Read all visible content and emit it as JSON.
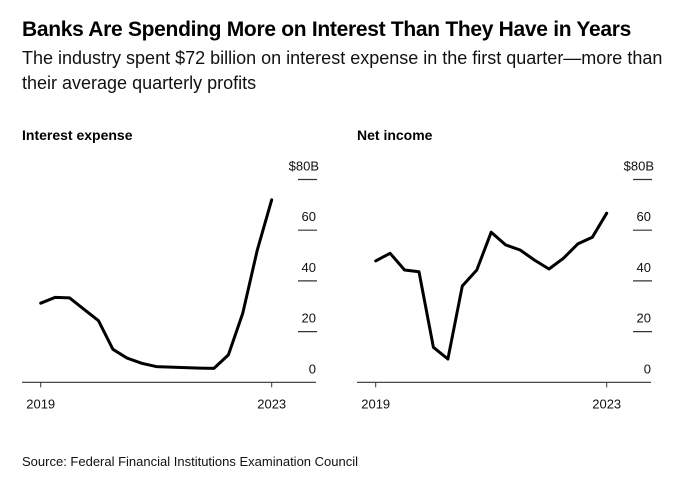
{
  "header": {
    "title": "Banks Are Spending More on Interest Than They Have in Years",
    "subtitle": "The industry spent $72 billion on interest expense in the first quarter—more than their average quarterly profits"
  },
  "footer": {
    "source": "Source: Federal Financial Institutions Examination Council"
  },
  "chart_data": [
    {
      "type": "line",
      "title": "Interest expense",
      "xlabel": "",
      "ylabel": "",
      "x_tick_labels": [
        "2019",
        "2023"
      ],
      "y_tick_labels": [
        "0",
        "20",
        "40",
        "60",
        "$80B"
      ],
      "y_ticks": [
        0,
        20,
        40,
        60,
        80
      ],
      "ylim": [
        0,
        80
      ],
      "grid": false,
      "x": [
        "2019 Q1",
        "2019 Q2",
        "2019 Q3",
        "2019 Q4",
        "2020 Q1",
        "2020 Q2",
        "2020 Q3",
        "2020 Q4",
        "2021 Q1",
        "2021 Q2",
        "2021 Q3",
        "2021 Q4",
        "2022 Q1",
        "2022 Q2",
        "2022 Q3",
        "2022 Q4",
        "2023 Q1"
      ],
      "series": [
        {
          "name": "Interest expense ($B)",
          "values": [
            31.2,
            33.5,
            33.3,
            28.8,
            24.3,
            13.0,
            9.5,
            7.5,
            6.2,
            6.0,
            5.8,
            5.6,
            5.5,
            10.8,
            27.3,
            52.2,
            72.0
          ]
        }
      ]
    },
    {
      "type": "line",
      "title": "Net income",
      "xlabel": "",
      "ylabel": "",
      "x_tick_labels": [
        "2019",
        "2023"
      ],
      "y_tick_labels": [
        "0",
        "20",
        "40",
        "60",
        "$80B"
      ],
      "y_ticks": [
        0,
        20,
        40,
        60,
        80
      ],
      "ylim": [
        0,
        80
      ],
      "grid": false,
      "x": [
        "2019 Q1",
        "2019 Q2",
        "2019 Q3",
        "2019 Q4",
        "2020 Q1",
        "2020 Q2",
        "2020 Q3",
        "2020 Q4",
        "2021 Q1",
        "2021 Q2",
        "2021 Q3",
        "2021 Q4",
        "2022 Q1",
        "2022 Q2",
        "2022 Q3",
        "2022 Q4",
        "2023 Q1"
      ],
      "series": [
        {
          "name": "Net income ($B)",
          "values": [
            47.9,
            50.9,
            44.3,
            43.6,
            13.8,
            9.2,
            38.0,
            44.3,
            59.2,
            54.2,
            52.2,
            48.2,
            44.7,
            48.9,
            54.6,
            57.2,
            66.7
          ]
        }
      ]
    }
  ],
  "colors": {
    "line": "#000000",
    "axis": "#333333",
    "text": "#111111"
  }
}
